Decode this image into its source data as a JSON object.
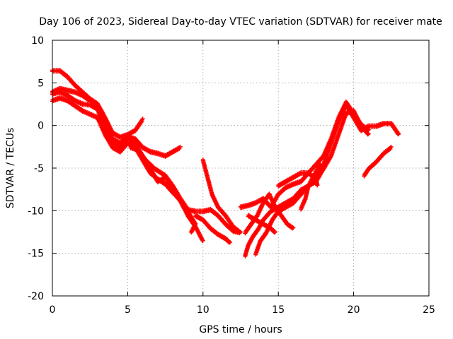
{
  "chart_data": {
    "type": "scatter",
    "title": "Day 106 of 2023, Sidereal Day-to-day VTEC variation (SDTVAR) for receiver mate",
    "xlabel": "GPS time / hours",
    "ylabel": "SDTVAR / TECUs",
    "xlim": [
      0,
      25
    ],
    "ylim": [
      -20,
      10
    ],
    "x_ticks": [
      0,
      5,
      10,
      15,
      20,
      25
    ],
    "y_ticks": [
      10,
      5,
      0,
      -5,
      -10,
      -15,
      -20
    ],
    "grid": true,
    "marker": "+",
    "color": "#ff0000",
    "series": [
      {
        "values": [
          [
            0.0,
            6.5
          ],
          [
            0.5,
            6.5
          ],
          [
            1.0,
            5.8
          ],
          [
            1.5,
            4.8
          ],
          [
            2.0,
            4.0
          ],
          [
            2.5,
            3.2
          ],
          [
            3.0,
            2.6
          ],
          [
            3.5,
            1.0
          ],
          [
            4.0,
            -0.8
          ],
          [
            4.5,
            -1.3
          ],
          [
            5.0,
            -1.0
          ],
          [
            5.5,
            -0.5
          ],
          [
            6.0,
            0.8
          ]
        ]
      },
      {
        "values": [
          [
            0.0,
            4.0
          ],
          [
            0.5,
            4.4
          ],
          [
            1.0,
            4.2
          ],
          [
            1.5,
            4.0
          ],
          [
            2.0,
            3.6
          ],
          [
            2.5,
            3.0
          ],
          [
            3.0,
            2.4
          ],
          [
            3.5,
            0.5
          ],
          [
            4.0,
            -1.5
          ],
          [
            4.5,
            -2.0
          ],
          [
            5.0,
            -1.2
          ],
          [
            5.5,
            -1.5
          ],
          [
            6.0,
            -2.5
          ],
          [
            6.5,
            -3.0
          ],
          [
            7.0,
            -3.2
          ],
          [
            7.5,
            -3.5
          ],
          [
            8.0,
            -3.0
          ],
          [
            8.5,
            -2.5
          ]
        ]
      },
      {
        "values": [
          [
            0.0,
            3.8
          ],
          [
            0.5,
            4.0
          ],
          [
            1.0,
            3.6
          ],
          [
            1.5,
            3.0
          ],
          [
            2.0,
            2.6
          ],
          [
            2.5,
            2.5
          ],
          [
            3.0,
            2.0
          ],
          [
            3.5,
            -0.5
          ],
          [
            4.0,
            -2.0
          ],
          [
            4.5,
            -2.5
          ],
          [
            5.0,
            -1.5
          ],
          [
            5.5,
            -2.0
          ],
          [
            6.0,
            -3.5
          ],
          [
            6.5,
            -5.0
          ],
          [
            7.0,
            -6.5
          ],
          [
            7.5,
            -6.0
          ],
          [
            8.0,
            -7.5
          ],
          [
            8.5,
            -8.8
          ],
          [
            9.0,
            -10.5
          ],
          [
            9.5,
            -11.8
          ],
          [
            10.0,
            -13.5
          ]
        ]
      },
      {
        "values": [
          [
            0.0,
            3.0
          ],
          [
            0.5,
            3.3
          ],
          [
            1.0,
            3.0
          ],
          [
            1.5,
            2.4
          ],
          [
            2.0,
            1.8
          ],
          [
            3.0,
            1.0
          ],
          [
            3.5,
            -1.0
          ],
          [
            4.0,
            -2.5
          ],
          [
            4.5,
            -3.0
          ],
          [
            5.0,
            -2.0
          ],
          [
            5.5,
            -2.5
          ],
          [
            6.0,
            -4.0
          ],
          [
            6.5,
            -5.5
          ],
          [
            7.0,
            -6.2
          ],
          [
            7.5,
            -6.8
          ],
          [
            8.0,
            -7.8
          ],
          [
            8.5,
            -8.7
          ],
          [
            9.0,
            -10.0
          ],
          [
            9.5,
            -11.5
          ],
          [
            9.2,
            -12.5
          ]
        ]
      },
      {
        "values": [
          [
            5.2,
            -2.5
          ],
          [
            5.7,
            -2.8
          ],
          [
            6.2,
            -4.0
          ],
          [
            6.8,
            -5.0
          ],
          [
            7.5,
            -5.8
          ],
          [
            8.0,
            -7.0
          ],
          [
            8.5,
            -8.5
          ],
          [
            9.0,
            -9.8
          ],
          [
            9.5,
            -10.0
          ],
          [
            10.0,
            -10.0
          ],
          [
            10.5,
            -9.8
          ],
          [
            11.0,
            -10.5
          ],
          [
            11.5,
            -11.5
          ],
          [
            12.0,
            -12.3
          ],
          [
            12.5,
            -12.5
          ]
        ]
      },
      {
        "values": [
          [
            9.5,
            -10.5
          ],
          [
            10.0,
            -11.0
          ],
          [
            10.5,
            -12.0
          ],
          [
            11.0,
            -12.7
          ],
          [
            11.5,
            -13.2
          ],
          [
            11.8,
            -13.7
          ]
        ]
      },
      {
        "values": [
          [
            10.0,
            -4.0
          ],
          [
            10.3,
            -6.0
          ],
          [
            10.6,
            -8.0
          ],
          [
            11.0,
            -9.5
          ],
          [
            11.5,
            -10.5
          ],
          [
            12.0,
            -11.8
          ],
          [
            12.5,
            -12.5
          ]
        ]
      },
      {
        "values": [
          [
            12.8,
            -12.5
          ],
          [
            13.2,
            -11.5
          ],
          [
            13.6,
            -10.5
          ],
          [
            14.0,
            -9.0
          ],
          [
            14.4,
            -8.0
          ],
          [
            14.8,
            -9.5
          ],
          [
            15.2,
            -10.5
          ],
          [
            15.6,
            -11.5
          ],
          [
            16.0,
            -12.0
          ]
        ]
      },
      {
        "values": [
          [
            12.8,
            -15.2
          ],
          [
            13.0,
            -14.0
          ],
          [
            13.3,
            -13.0
          ],
          [
            13.7,
            -12.0
          ],
          [
            14.0,
            -11.0
          ],
          [
            14.5,
            -10.0
          ],
          [
            15.0,
            -9.5
          ],
          [
            15.5,
            -9.0
          ],
          [
            16.0,
            -8.5
          ],
          [
            16.5,
            -7.5
          ],
          [
            17.0,
            -7.0
          ],
          [
            17.5,
            -6.5
          ],
          [
            18.0,
            -5.0
          ],
          [
            18.5,
            -3.5
          ],
          [
            19.0,
            -1.0
          ],
          [
            19.5,
            1.5
          ],
          [
            20.0,
            1.8
          ],
          [
            20.5,
            0.0
          ],
          [
            21.0,
            -1.0
          ]
        ]
      },
      {
        "values": [
          [
            13.5,
            -15.0
          ],
          [
            13.8,
            -13.5
          ],
          [
            14.2,
            -12.5
          ],
          [
            14.6,
            -11.0
          ],
          [
            15.0,
            -10.0
          ],
          [
            15.5,
            -9.5
          ],
          [
            16.0,
            -9.0
          ],
          [
            16.5,
            -8.0
          ],
          [
            17.0,
            -7.0
          ],
          [
            17.5,
            -6.0
          ],
          [
            18.0,
            -4.5
          ],
          [
            18.5,
            -2.0
          ],
          [
            19.0,
            0.5
          ],
          [
            19.5,
            2.5
          ],
          [
            20.0,
            1.0
          ],
          [
            20.5,
            -0.5
          ],
          [
            21.0,
            0.0
          ],
          [
            21.5,
            0.0
          ],
          [
            22.0,
            0.3
          ],
          [
            22.5,
            0.3
          ],
          [
            23.0,
            -1.0
          ]
        ]
      },
      {
        "values": [
          [
            12.5,
            -9.5
          ],
          [
            13.0,
            -9.3
          ],
          [
            13.5,
            -9.0
          ],
          [
            14.0,
            -8.5
          ],
          [
            14.5,
            -9.5
          ],
          [
            15.0,
            -8.0
          ],
          [
            15.5,
            -7.2
          ],
          [
            16.0,
            -6.8
          ],
          [
            16.5,
            -6.5
          ],
          [
            17.0,
            -5.5
          ],
          [
            17.5,
            -4.5
          ],
          [
            18.0,
            -3.5
          ],
          [
            18.5,
            -1.5
          ],
          [
            19.0,
            1.0
          ],
          [
            19.5,
            2.8
          ],
          [
            20.0,
            1.5
          ],
          [
            20.5,
            0.2
          ],
          [
            21.0,
            -0.5
          ]
        ]
      },
      {
        "values": [
          [
            15.0,
            -7.0
          ],
          [
            15.5,
            -6.5
          ],
          [
            16.0,
            -6.0
          ],
          [
            16.5,
            -5.5
          ],
          [
            17.0,
            -5.5
          ],
          [
            17.5,
            -6.2
          ],
          [
            17.6,
            -7.0
          ]
        ]
      },
      {
        "values": [
          [
            16.5,
            -9.7
          ],
          [
            16.8,
            -8.5
          ],
          [
            17.0,
            -7.0
          ],
          [
            17.3,
            -6.0
          ],
          [
            17.6,
            -5.0
          ],
          [
            17.8,
            -4.5
          ]
        ]
      },
      {
        "values": [
          [
            13.0,
            -10.5
          ],
          [
            13.5,
            -11.0
          ],
          [
            14.0,
            -11.5
          ],
          [
            14.5,
            -12.0
          ],
          [
            14.8,
            -12.5
          ]
        ]
      },
      {
        "values": [
          [
            20.7,
            -5.8
          ],
          [
            21.0,
            -5.0
          ],
          [
            21.5,
            -4.2
          ],
          [
            22.0,
            -3.2
          ],
          [
            22.5,
            -2.5
          ]
        ]
      }
    ]
  }
}
